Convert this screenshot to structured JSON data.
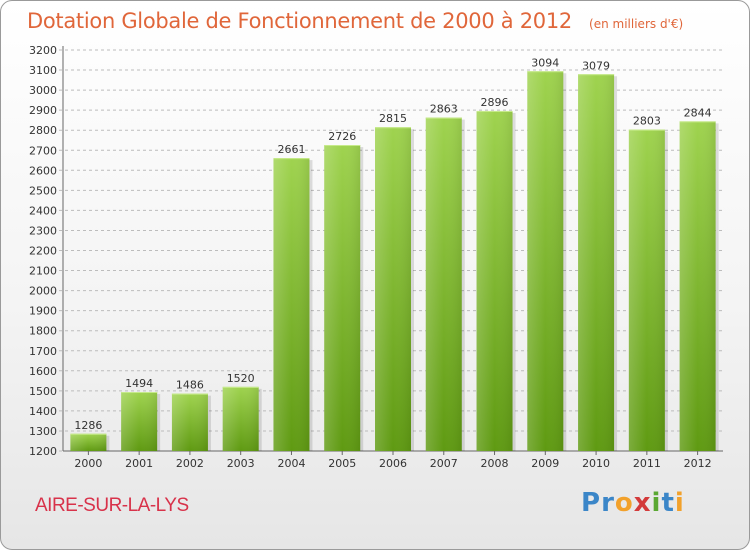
{
  "title": "Dotation Globale de Fonctionnement de 2000 à 2012",
  "subtitle": "(en milliers d'€)",
  "commune": "AIRE-SUR-LA-LYS",
  "logo": {
    "text": "Proxiti",
    "letters": [
      "P",
      "r",
      "o",
      "x",
      "i",
      "t",
      "i"
    ],
    "colors": [
      "#3b86c8",
      "#3b86c8",
      "#f2a12b",
      "#d33a3a",
      "#5aa832",
      "#3b86c8",
      "#f2a12b"
    ]
  },
  "colors": {
    "title": "#e0663a",
    "commune": "#d8324a",
    "bar_top": "#9fd34f",
    "bar_bottom": "#5f9a12",
    "grid": "#bcbcbc",
    "axis": "#666666"
  },
  "chart_data": {
    "type": "bar",
    "categories": [
      "2000",
      "2001",
      "2002",
      "2003",
      "2004",
      "2005",
      "2006",
      "2007",
      "2008",
      "2009",
      "2010",
      "2011",
      "2012"
    ],
    "values": [
      1286,
      1494,
      1486,
      1520,
      2661,
      2726,
      2815,
      2863,
      2896,
      3094,
      3079,
      2803,
      2844
    ],
    "yticks": [
      1200,
      1300,
      1400,
      1500,
      1600,
      1700,
      1800,
      1900,
      2000,
      2100,
      2200,
      2300,
      2400,
      2500,
      2600,
      2700,
      2800,
      2900,
      3000,
      3100,
      3200
    ],
    "ylim": [
      1200,
      3200
    ],
    "grid": true,
    "data_labels": true
  }
}
